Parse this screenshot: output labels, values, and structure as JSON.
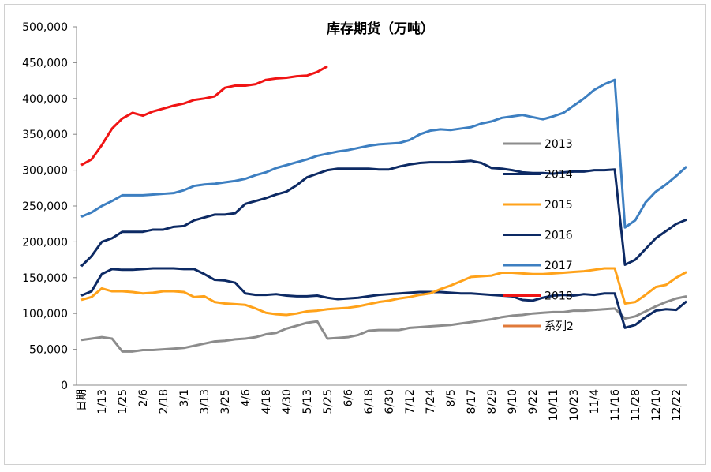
{
  "chart_data": {
    "type": "line",
    "title": "库存期货（万吨）",
    "categories": [
      "日期",
      null,
      "1/13",
      null,
      "1/25",
      null,
      "2/6",
      null,
      "2/18",
      null,
      "3/1",
      null,
      "3/13",
      null,
      "3/25",
      null,
      "4/6",
      null,
      "4/18",
      null,
      "4/30",
      null,
      "5/13",
      null,
      "5/25",
      null,
      "6/6",
      null,
      "6/18",
      null,
      "6/30",
      null,
      "7/12",
      null,
      "7/24",
      null,
      "8/5",
      null,
      "8/17",
      null,
      "8/29",
      null,
      "9/10",
      null,
      "9/22",
      null,
      "10/11",
      null,
      "10/23",
      null,
      "11/4",
      null,
      "11/16",
      null,
      "11/28",
      null,
      "12/10",
      null,
      "12/22",
      null
    ],
    "ylim": [
      0,
      500000
    ],
    "yticks": [
      {
        "value": 0,
        "label": "0"
      },
      {
        "value": 50000,
        "label": "50,000"
      },
      {
        "value": 100000,
        "label": "100,000"
      },
      {
        "value": 150000,
        "label": "150,000"
      },
      {
        "value": 200000,
        "label": "200,000"
      },
      {
        "value": 250000,
        "label": "250,000"
      },
      {
        "value": 300000,
        "label": "300,000"
      },
      {
        "value": 350000,
        "label": "350,000"
      },
      {
        "value": 400000,
        "label": "400,000"
      },
      {
        "value": 450000,
        "label": "450,000"
      },
      {
        "value": 500000,
        "label": "500,000"
      }
    ],
    "grid": false,
    "series": [
      {
        "name": "2013",
        "color": "#8c8c8c",
        "values": [
          63000,
          65000,
          67000,
          65000,
          47000,
          47000,
          49000,
          49000,
          50000,
          51000,
          52000,
          55000,
          58000,
          61000,
          62000,
          64000,
          65000,
          67000,
          71000,
          73000,
          79000,
          83000,
          87000,
          89000,
          65000,
          66000,
          67000,
          70000,
          76000,
          77000,
          77000,
          77000,
          80000,
          81000,
          82000,
          83000,
          84000,
          86000,
          88000,
          90000,
          92000,
          95000,
          97000,
          98000,
          100000,
          101000,
          102000,
          102000,
          104000,
          104000,
          105000,
          106000,
          107000,
          93000,
          96000,
          103000,
          110000,
          116000,
          121000,
          124000
        ]
      },
      {
        "name": "2014",
        "color": "#0d2a64",
        "values": [
          125000,
          131000,
          155000,
          162000,
          161000,
          161000,
          162000,
          163000,
          163000,
          163000,
          162000,
          162000,
          155000,
          147000,
          146000,
          143000,
          128000,
          126000,
          126000,
          127000,
          125000,
          124000,
          124000,
          125000,
          122000,
          120000,
          121000,
          122000,
          124000,
          126000,
          127000,
          128000,
          129000,
          130000,
          130000,
          130000,
          129000,
          128000,
          128000,
          127000,
          126000,
          125000,
          124000,
          119000,
          118000,
          122000,
          125000,
          126000,
          125000,
          127000,
          126000,
          128000,
          128000,
          80000,
          84000,
          95000,
          104000,
          106000,
          105000,
          117000
        ]
      },
      {
        "name": "2015",
        "color": "#ffa21a",
        "values": [
          119000,
          123000,
          135000,
          131000,
          131000,
          130000,
          128000,
          129000,
          131000,
          131000,
          130000,
          123000,
          124000,
          116000,
          114000,
          113000,
          112000,
          107000,
          101000,
          99000,
          98000,
          100000,
          103000,
          104000,
          106000,
          107000,
          108000,
          110000,
          113000,
          116000,
          118000,
          121000,
          123000,
          126000,
          128000,
          134000,
          139000,
          145000,
          151000,
          152000,
          153000,
          157000,
          157000,
          156000,
          155000,
          155000,
          156000,
          157000,
          158000,
          159000,
          161000,
          163000,
          163000,
          114000,
          116000,
          126000,
          137000,
          140000,
          150000,
          158000
        ]
      },
      {
        "name": "2016",
        "color": "#0d2a64",
        "values": [
          166000,
          180000,
          200000,
          205000,
          214000,
          214000,
          214000,
          217000,
          217000,
          221000,
          222000,
          230000,
          234000,
          238000,
          238000,
          240000,
          253000,
          257000,
          261000,
          266000,
          270000,
          279000,
          290000,
          295000,
          300000,
          302000,
          302000,
          302000,
          302000,
          301000,
          301000,
          305000,
          308000,
          310000,
          311000,
          311000,
          311000,
          312000,
          313000,
          310000,
          303000,
          302000,
          300000,
          297000,
          296000,
          296000,
          295000,
          297000,
          298000,
          298000,
          300000,
          300000,
          301000,
          168000,
          175000,
          190000,
          205000,
          215000,
          225000,
          231000
        ]
      },
      {
        "name": "2017",
        "color": "#3d7fc1",
        "values": [
          235000,
          241000,
          250000,
          257000,
          265000,
          265000,
          265000,
          266000,
          267000,
          268000,
          272000,
          278000,
          280000,
          281000,
          283000,
          285000,
          288000,
          293000,
          297000,
          303000,
          307000,
          311000,
          315000,
          320000,
          323000,
          326000,
          328000,
          331000,
          334000,
          336000,
          337000,
          338000,
          342000,
          350000,
          355000,
          357000,
          356000,
          358000,
          360000,
          365000,
          368000,
          373000,
          375000,
          377000,
          374000,
          371000,
          375000,
          380000,
          390000,
          400000,
          412000,
          420000,
          426000,
          220000,
          230000,
          255000,
          270000,
          280000,
          292000,
          305000
        ]
      },
      {
        "name": "2018",
        "color": "#f01414",
        "values": [
          307000,
          315000,
          335000,
          358000,
          372000,
          380000,
          376000,
          382000,
          386000,
          390000,
          393000,
          398000,
          400000,
          403000,
          415000,
          418000,
          418000,
          420000,
          426000,
          428000,
          429000,
          431000,
          432000,
          437000,
          445000,
          null,
          null,
          null,
          null,
          null,
          null,
          null,
          null,
          null,
          null,
          null,
          null,
          null,
          null,
          null,
          null,
          null,
          null,
          null,
          null,
          null,
          null,
          null,
          null,
          null,
          null,
          null,
          null,
          null,
          null,
          null,
          null,
          null,
          null,
          null
        ]
      },
      {
        "name": "系列2",
        "color": "#e07a3a",
        "values": [
          null,
          null,
          null,
          null,
          null,
          null,
          null,
          null,
          null,
          null,
          null,
          null,
          null,
          null,
          null,
          null,
          null,
          null,
          null,
          null,
          null,
          null,
          null,
          null,
          null,
          null,
          null,
          null,
          null,
          null,
          null,
          null,
          null,
          null,
          null,
          null,
          null,
          null,
          null,
          null,
          null,
          null,
          null,
          null,
          null,
          null,
          null,
          null,
          null,
          null,
          null,
          null,
          null,
          null,
          null,
          null,
          null,
          null,
          null,
          null
        ]
      }
    ]
  }
}
